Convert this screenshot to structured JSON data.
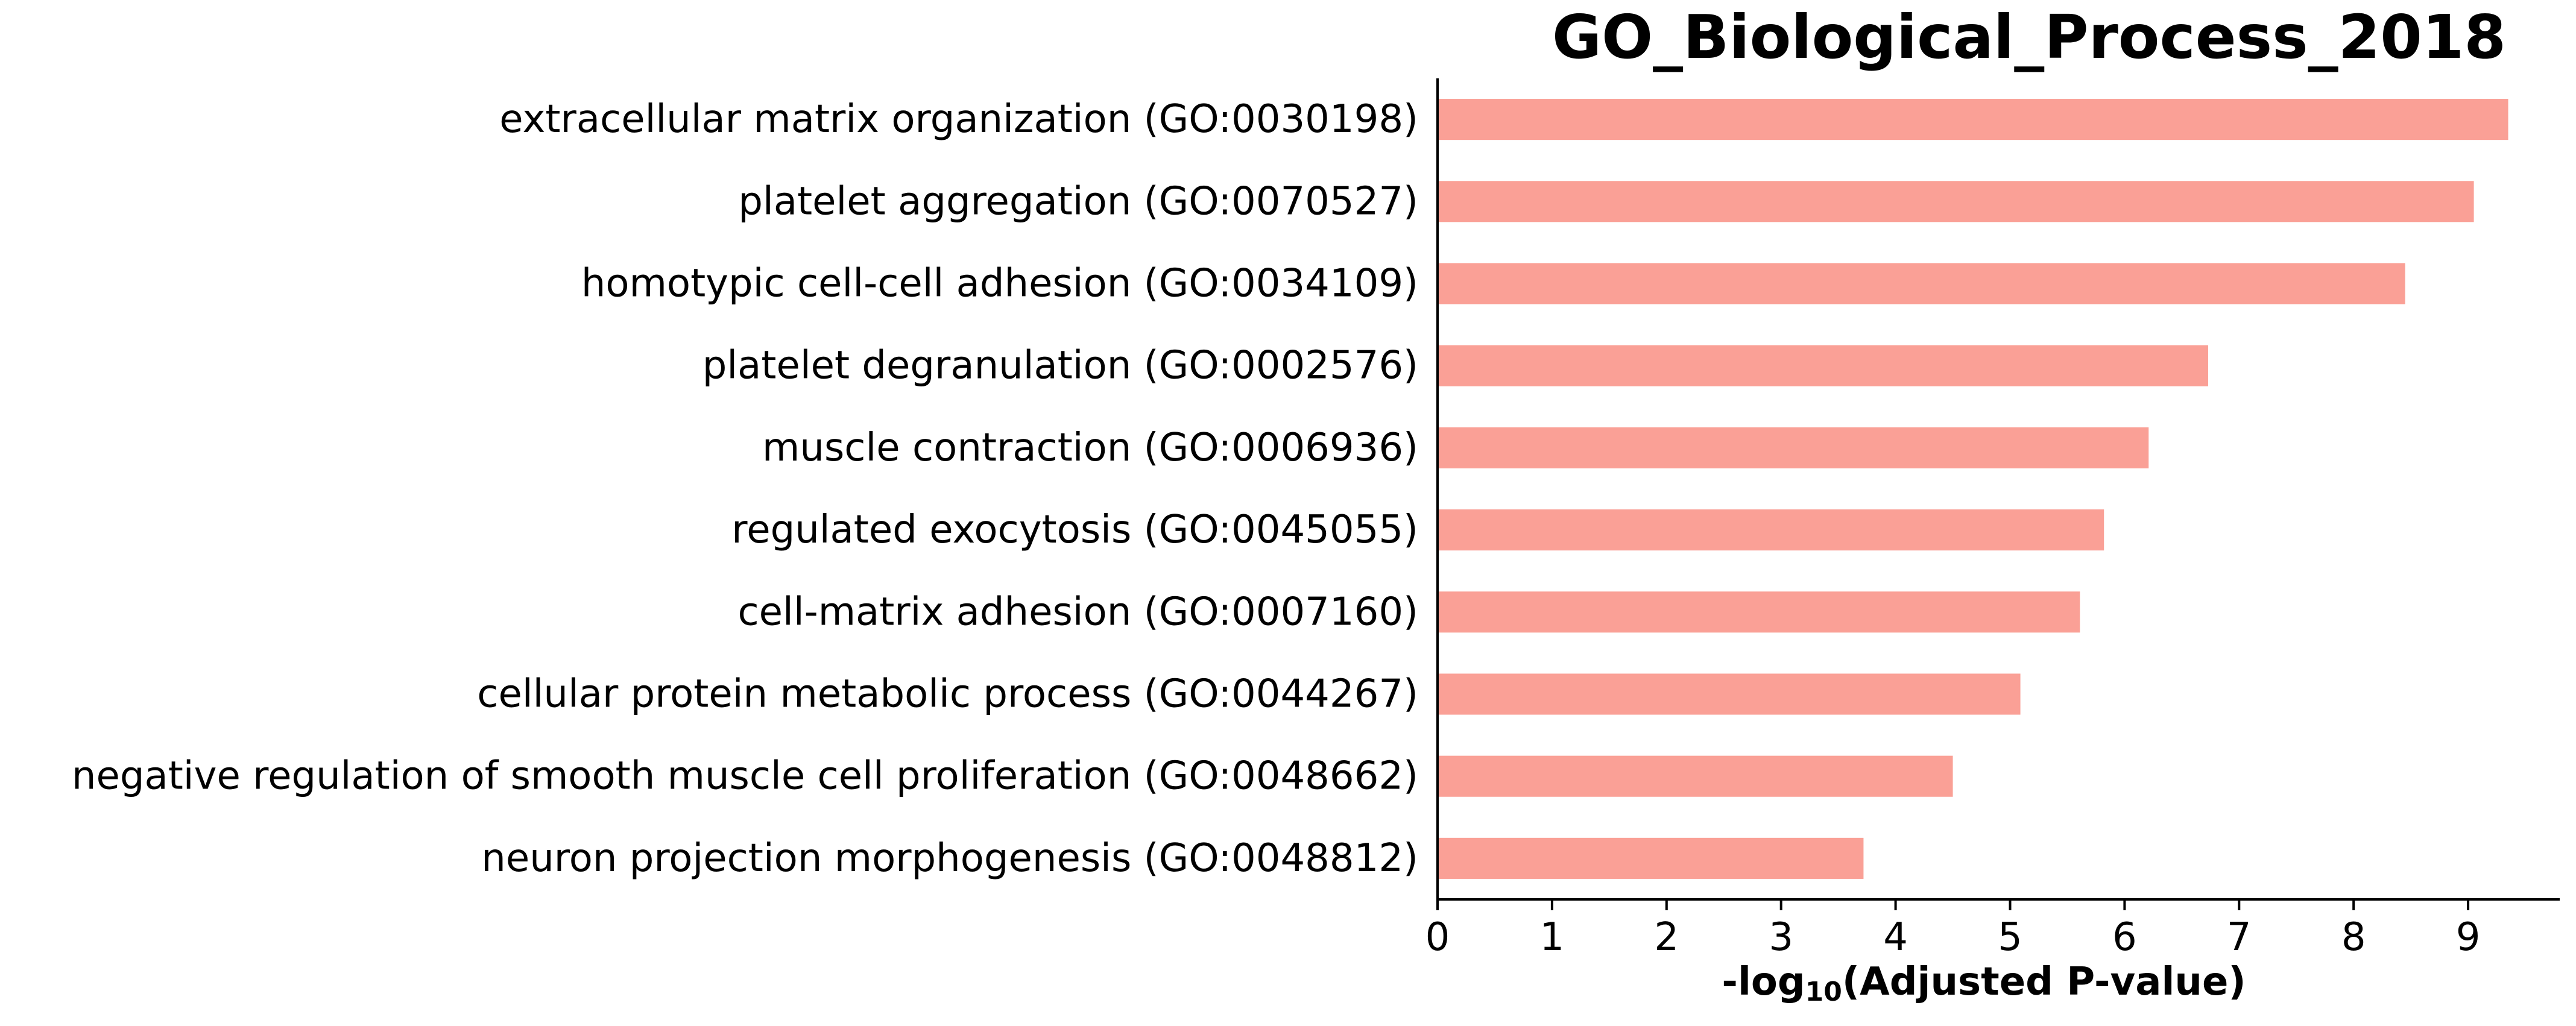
{
  "chart_data": {
    "type": "bar",
    "orientation": "horizontal",
    "title": "GO_Biological_Process_2018",
    "xlabel": {
      "prefix": "-log",
      "subscript": "10",
      "suffix": "(Adjusted P-value)"
    },
    "ylabel": "",
    "categories": [
      "extracellular matrix organization (GO:0030198)",
      "platelet aggregation (GO:0070527)",
      "homotypic cell-cell adhesion (GO:0034109)",
      "platelet degranulation (GO:0002576)",
      "muscle contraction (GO:0006936)",
      "regulated exocytosis (GO:0045055)",
      "cell-matrix adhesion (GO:0007160)",
      "cellular protein metabolic process (GO:0044267)",
      "negative regulation of smooth muscle cell proliferation (GO:0048662)",
      "neuron projection morphogenesis (GO:0048812)"
    ],
    "values": [
      9.35,
      9.05,
      8.45,
      6.73,
      6.21,
      5.82,
      5.61,
      5.09,
      4.5,
      3.72
    ],
    "xlim": [
      0,
      9.8
    ],
    "xticks": [
      "0",
      "1",
      "2",
      "3",
      "4",
      "5",
      "6",
      "7",
      "8",
      "9"
    ],
    "bar_color": "#FAA096",
    "grid": false,
    "legend": "none"
  }
}
